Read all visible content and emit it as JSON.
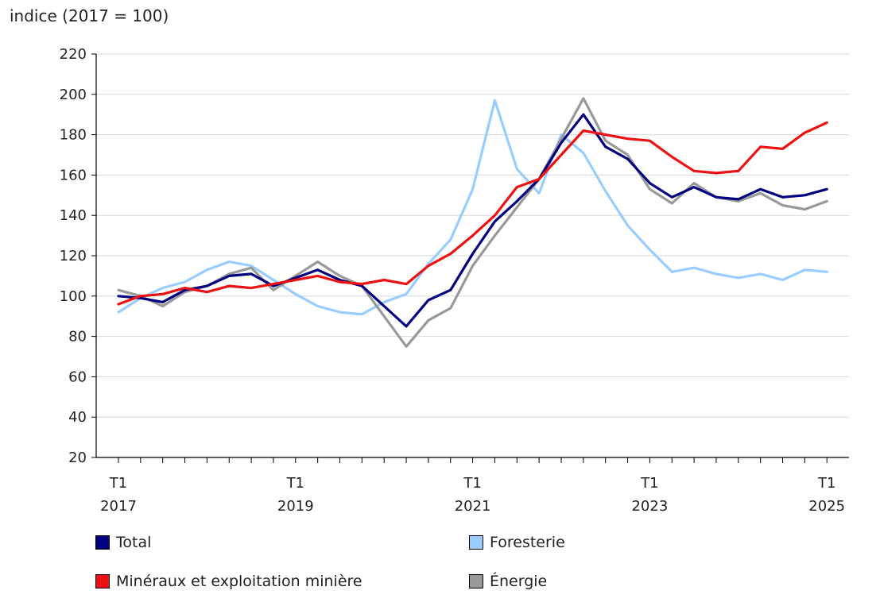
{
  "chart_data": {
    "type": "line",
    "ylabel": "indice (2017 = 100)",
    "ylim": [
      20,
      220
    ],
    "yticks": [
      20,
      40,
      60,
      80,
      100,
      120,
      140,
      160,
      180,
      200,
      220
    ],
    "x_tick_labels": [
      {
        "quarter": "T1",
        "year": "2017",
        "index": 0
      },
      {
        "quarter": "T1",
        "year": "2019",
        "index": 8
      },
      {
        "quarter": "T1",
        "year": "2021",
        "index": 16
      },
      {
        "quarter": "T1",
        "year": "2023",
        "index": 24
      },
      {
        "quarter": "T1",
        "year": "2025",
        "index": 32
      }
    ],
    "n_points": 33,
    "series": [
      {
        "name": "Total",
        "color": "#000080",
        "values": [
          100,
          99,
          97,
          103,
          105,
          110,
          111,
          105,
          109,
          113,
          108,
          105,
          95,
          85,
          98,
          103,
          121,
          137,
          147,
          158,
          176,
          190,
          174,
          168,
          156,
          149,
          154,
          149,
          148,
          153,
          149,
          150,
          153
        ]
      },
      {
        "name": "Foresterie",
        "color": "#99ccff",
        "values": [
          92,
          99,
          104,
          107,
          113,
          117,
          115,
          108,
          101,
          95,
          92,
          91,
          97,
          101,
          116,
          128,
          153,
          197,
          163,
          151,
          180,
          171,
          152,
          135,
          123,
          112,
          114,
          111,
          109,
          111,
          108,
          113,
          112
        ]
      },
      {
        "name": "Minéraux et exploitation minière",
        "color": "#ee1111",
        "values": [
          96,
          100,
          101,
          104,
          102,
          105,
          104,
          106,
          108,
          110,
          107,
          106,
          108,
          106,
          115,
          121,
          130,
          140,
          154,
          158,
          170,
          182,
          180,
          178,
          177,
          169,
          162,
          161,
          162,
          174,
          173,
          181,
          186
        ]
      },
      {
        "name": "Énergie",
        "color": "#999999",
        "values": [
          103,
          100,
          95,
          102,
          105,
          111,
          114,
          103,
          110,
          117,
          110,
          105,
          90,
          75,
          88,
          94,
          115,
          130,
          144,
          158,
          178,
          198,
          177,
          170,
          153,
          146,
          156,
          149,
          147,
          151,
          145,
          143,
          147
        ]
      }
    ]
  }
}
